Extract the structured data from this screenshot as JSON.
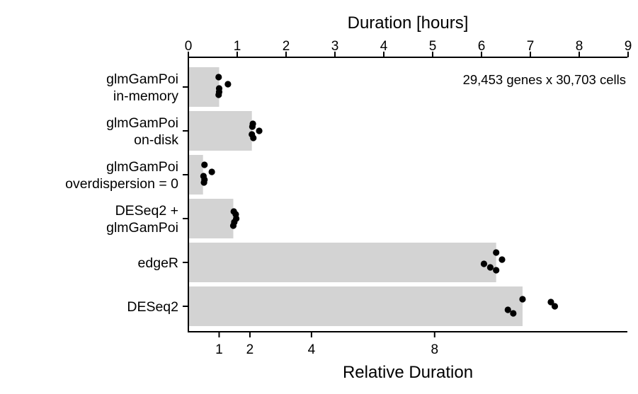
{
  "chart_data": {
    "type": "bar",
    "annotation": "29,453 genes x 30,703 cells",
    "top_axis": {
      "label": "Duration [hours]",
      "range": [
        0,
        9
      ],
      "ticks": [
        "0",
        "1",
        "2",
        "3",
        "4",
        "5",
        "6",
        "7",
        "8",
        "9"
      ]
    },
    "bottom_axis": {
      "label": "Relative Duration",
      "ticks": [
        {
          "label": "1",
          "hours": 0.63
        },
        {
          "label": "2",
          "hours": 1.26
        },
        {
          "label": "4",
          "hours": 2.52
        },
        {
          "label": "8",
          "hours": 5.04
        }
      ]
    },
    "categories": [
      {
        "lines": [
          "glmGamPoi",
          "in-memory"
        ],
        "bar_hours": 0.63,
        "points_hours": [
          0.62,
          0.81,
          0.63,
          0.63,
          0.62
        ]
      },
      {
        "lines": [
          "glmGamPoi",
          "on-disk"
        ],
        "bar_hours": 1.3,
        "points_hours": [
          1.32,
          1.45,
          1.3,
          1.33,
          1.31
        ]
      },
      {
        "lines": [
          "glmGamPoi",
          "overdispersion = 0"
        ],
        "bar_hours": 0.3,
        "points_hours": [
          0.33,
          0.48,
          0.31,
          0.33,
          0.32
        ]
      },
      {
        "lines": [
          "DESeq2 +",
          "glmGamPoi"
        ],
        "bar_hours": 0.92,
        "points_hours": [
          0.93,
          0.98,
          0.94,
          0.92,
          0.97
        ]
      },
      {
        "lines": [
          "edgeR"
        ],
        "bar_hours": 6.3,
        "points_hours": [
          6.3,
          6.42,
          6.05,
          6.18,
          6.3
        ]
      },
      {
        "lines": [
          "DESeq2"
        ],
        "bar_hours": 6.84,
        "points_hours": [
          6.84,
          7.5,
          6.54,
          6.65,
          7.42
        ]
      }
    ]
  }
}
